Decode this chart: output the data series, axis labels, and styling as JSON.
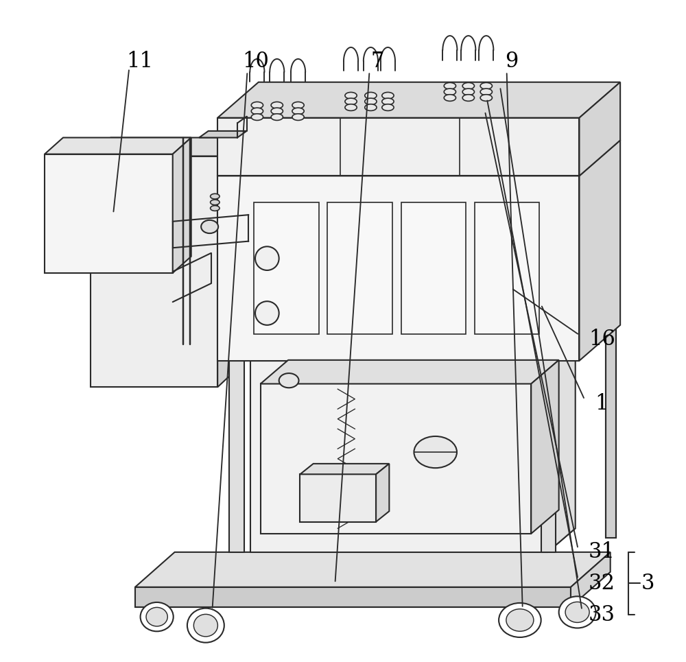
{
  "bg_color": "#ffffff",
  "line_color": "#2a2a2a",
  "line_width": 1.5,
  "label_fontsize": 22,
  "figsize": [
    10.0,
    9.65
  ],
  "dpi": 100
}
